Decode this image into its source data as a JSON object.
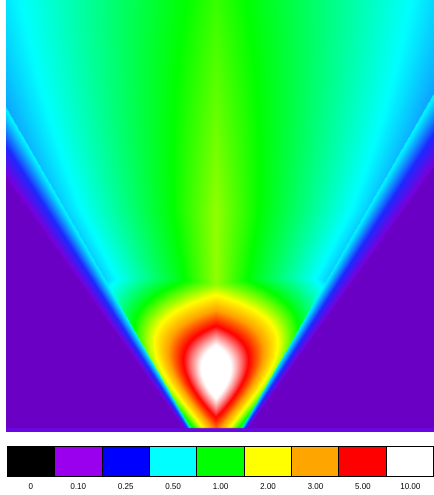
{
  "color_scale": {
    "values": [
      {
        "label": "0",
        "color": "#000000"
      },
      {
        "label": "0.10",
        "color": "#9b00ee"
      },
      {
        "label": "0.25",
        "color": "#0000ff"
      },
      {
        "label": "0.50",
        "color": "#00ffff"
      },
      {
        "label": "1.00",
        "color": "#00ff00"
      },
      {
        "label": "2.00",
        "color": "#ffff00"
      },
      {
        "label": "3.00",
        "color": "#ffa500"
      },
      {
        "label": "5.00",
        "color": "#ff0000"
      },
      {
        "label": "10.00",
        "color": "#ffffff"
      }
    ]
  }
}
